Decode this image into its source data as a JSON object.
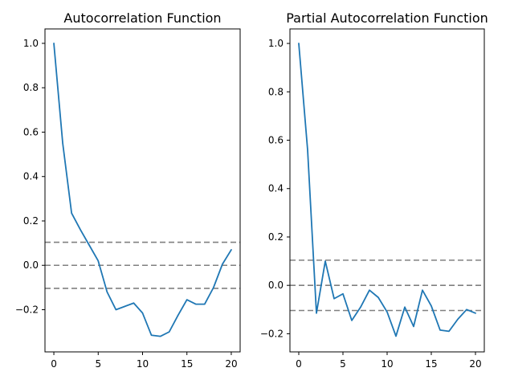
{
  "chart_data": [
    {
      "type": "line",
      "title": "Autocorrelation Function",
      "xlabel": "",
      "ylabel": "",
      "xlim": [
        -1,
        21
      ],
      "ylim": [
        -0.39,
        1.065
      ],
      "xticks": [
        0,
        5,
        10,
        15,
        20
      ],
      "yticks": [
        -0.2,
        0.0,
        0.2,
        0.4,
        0.6,
        0.8,
        1.0
      ],
      "ytick_labels": [
        "−0.2",
        "0.0",
        "0.2",
        "0.4",
        "0.6",
        "0.8",
        "1.0"
      ],
      "grid": false,
      "x": [
        0,
        1,
        2,
        3,
        4,
        5,
        6,
        7,
        8,
        9,
        10,
        11,
        12,
        13,
        14,
        15,
        16,
        17,
        18,
        19,
        20
      ],
      "series": [
        {
          "color": "#1f77b4",
          "values": [
            1.0,
            0.55,
            0.235,
            0.16,
            0.09,
            0.02,
            -0.12,
            -0.2,
            -0.185,
            -0.17,
            -0.215,
            -0.315,
            -0.32,
            -0.3,
            -0.225,
            -0.155,
            -0.175,
            -0.175,
            -0.1,
            0.005,
            0.07
          ]
        }
      ],
      "reference_lines": [
        {
          "y": 0.104,
          "color": "#808080",
          "style": "dashed"
        },
        {
          "y": 0.0,
          "color": "#808080",
          "style": "dashed"
        },
        {
          "y": -0.104,
          "color": "#808080",
          "style": "dashed"
        }
      ]
    },
    {
      "type": "line",
      "title": "Partial Autocorrelation Function",
      "xlabel": "",
      "ylabel": "",
      "xlim": [
        -1,
        21
      ],
      "ylim": [
        -0.275,
        1.06
      ],
      "xticks": [
        0,
        5,
        10,
        15,
        20
      ],
      "yticks": [
        -0.2,
        0.0,
        0.2,
        0.4,
        0.6,
        0.8,
        1.0
      ],
      "ytick_labels": [
        "−0.2",
        "0.0",
        "0.2",
        "0.4",
        "0.6",
        "0.8",
        "1.0"
      ],
      "grid": false,
      "x": [
        0,
        1,
        2,
        3,
        4,
        5,
        6,
        7,
        8,
        9,
        10,
        11,
        12,
        13,
        14,
        15,
        16,
        17,
        18,
        19,
        20
      ],
      "series": [
        {
          "color": "#1f77b4",
          "values": [
            1.0,
            0.56,
            -0.115,
            0.1,
            -0.055,
            -0.035,
            -0.145,
            -0.09,
            -0.02,
            -0.05,
            -0.11,
            -0.21,
            -0.09,
            -0.17,
            -0.02,
            -0.085,
            -0.185,
            -0.19,
            -0.14,
            -0.1,
            -0.115
          ]
        }
      ],
      "reference_lines": [
        {
          "y": 0.104,
          "color": "#808080",
          "style": "dashed"
        },
        {
          "y": 0.0,
          "color": "#808080",
          "style": "dashed"
        },
        {
          "y": -0.104,
          "color": "#808080",
          "style": "dashed"
        }
      ]
    }
  ]
}
